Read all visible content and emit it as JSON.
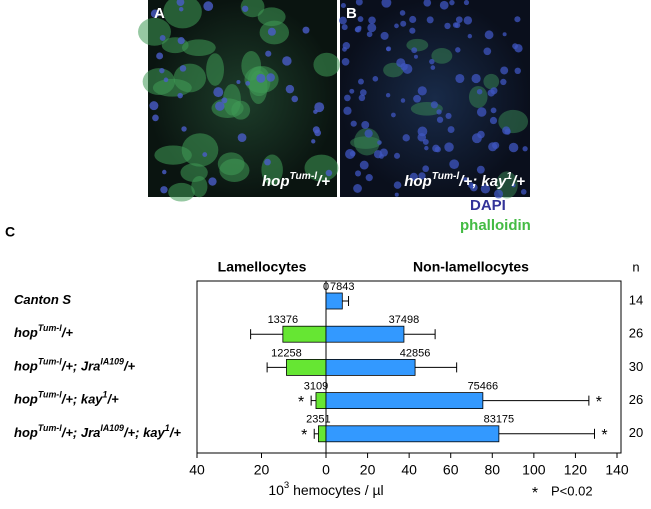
{
  "figure": {
    "panels": [
      {
        "label": "A",
        "caption": [
          "hop",
          "Tum-l",
          "/+"
        ]
      },
      {
        "label": "B",
        "caption": [
          "hop",
          "Tum-l",
          "/+; kay",
          "1",
          "/+"
        ]
      }
    ],
    "stains": [
      {
        "name": "DAPI",
        "color": "#333399"
      },
      {
        "name": "phalloidin",
        "color": "#44bb44"
      }
    ],
    "panel_c_label": "C"
  },
  "chart_data": {
    "type": "diverging-bar",
    "categories": [
      [
        "Canton S"
      ],
      [
        "hop",
        "Tum-l",
        "/+"
      ],
      [
        "hop",
        "Tum-l",
        "/+; Jra",
        "IA109",
        "/+"
      ],
      [
        "hop",
        "Tum-l",
        "/+; kay",
        "1",
        "/+"
      ],
      [
        "hop",
        "Tum-l",
        "/+; Jra",
        "IA109",
        "/+; kay",
        "1",
        "/+"
      ]
    ],
    "series": [
      {
        "name": "Lamellocytes",
        "color": "#66e633",
        "axis": "x",
        "values": [
          0,
          13.376,
          12.258,
          3.109,
          2.351
        ],
        "value_labels": [
          "0",
          "13376",
          "12258",
          "3109",
          "2351"
        ],
        "errors": [
          0,
          10,
          6,
          1.5,
          1.3
        ],
        "significant": [
          false,
          false,
          false,
          true,
          true
        ]
      },
      {
        "name": "Non-lamellocytes",
        "color": "#3399ff",
        "axis": "x2",
        "values": [
          7.843,
          37.498,
          42.856,
          75.466,
          83.175
        ],
        "value_labels": [
          "7843",
          "37498",
          "42856",
          "75466",
          "83175"
        ],
        "errors": [
          3,
          15,
          20,
          51,
          46
        ],
        "significant": [
          false,
          false,
          false,
          true,
          true
        ]
      }
    ],
    "xlim": [
      0,
      40
    ],
    "xticks": [
      40,
      20,
      0
    ],
    "x2lim": [
      0,
      140
    ],
    "x2ticks": [
      20,
      40,
      60,
      80,
      100,
      120,
      140
    ],
    "x_label": [
      "10",
      "3",
      " hemocytes / µl"
    ],
    "n_header": "n",
    "n": [
      14,
      26,
      30,
      26,
      20
    ],
    "significance": {
      "symbol": "*",
      "label": "P<0.02"
    }
  }
}
